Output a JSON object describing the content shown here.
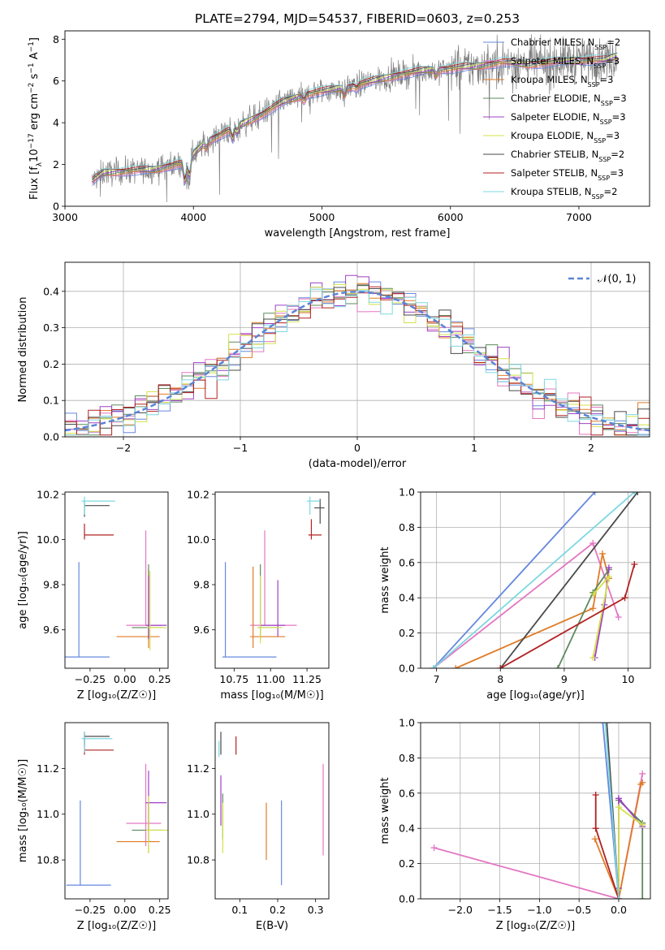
{
  "figure_title": "PLATE=2794, MJD=54537, FIBERID=0603, z=0.253",
  "colors": {
    "data_gray": "#7f7f7f",
    "gauss": "#5b84d6",
    "grid": "#b0b0b0"
  },
  "series_styles": [
    {
      "name": "Chabrier MILES, N_SSP=2",
      "legend": [
        "Chabrier MILES, N",
        "SSP",
        "=2"
      ],
      "color": "#6688dd"
    },
    {
      "name": "Salpeter MILES, N_SSP=3",
      "legend": [
        "Salpeter MILES, N",
        "SSP",
        "=3"
      ],
      "color": "#e377c2"
    },
    {
      "name": "Kroupa MILES, N_SSP=3",
      "legend": [
        "Kroupa MILES, N",
        "SSP",
        "=3"
      ],
      "color": "#e07b26"
    },
    {
      "name": "Chabrier ELODIE, N_SSP=3",
      "legend": [
        "Chabrier ELODIE, N",
        "SSP",
        "=3"
      ],
      "color": "#5e8a5e"
    },
    {
      "name": "Salpeter ELODIE, N_SSP=3",
      "legend": [
        "Salpeter ELODIE, N",
        "SSP",
        "=3"
      ],
      "color": "#9f40c4"
    },
    {
      "name": "Kroupa ELODIE, N_SSP=3",
      "legend": [
        "Kroupa ELODIE, N",
        "SSP",
        "=3"
      ],
      "color": "#d4e04a"
    },
    {
      "name": "Chabrier STELIB, N_SSP=2",
      "legend": [
        "Chabrier STELIB, N",
        "SSP",
        "=2"
      ],
      "color": "#4a4a4a"
    },
    {
      "name": "Salpeter STELIB, N_SSP=3",
      "legend": [
        "Salpeter STELIB, N",
        "SSP",
        "=3"
      ],
      "color": "#b22222"
    },
    {
      "name": "Kroupa STELIB, N_SSP=2",
      "legend": [
        "Kroupa STELIB, N",
        "SSP",
        "=2"
      ],
      "color": "#7dd8e0"
    }
  ],
  "chart_data": [
    {
      "id": "spectrum",
      "type": "line",
      "title": "PLATE=2794, MJD=54537, FIBERID=0603, z=0.253",
      "xlabel": "wavelength [Angstrom, rest frame]",
      "ylabel": [
        "Flux [f",
        "λ",
        "10",
        "−17",
        " erg cm",
        "−2",
        " s",
        "−1",
        " A",
        "−1",
        "]"
      ],
      "xlim": [
        3000,
        7550
      ],
      "ylim": [
        0,
        8.4
      ],
      "xticks": [
        3000,
        4000,
        5000,
        6000,
        7000
      ],
      "yticks": [
        0,
        2,
        4,
        6,
        8
      ],
      "grid": false,
      "legend_position": "top-right",
      "continuum": {
        "x": [
          3210,
          3300,
          3500,
          3700,
          3850,
          3950,
          4000,
          4100,
          4300,
          4500,
          4700,
          4900,
          5100,
          5200,
          5400,
          5600,
          5800,
          6000,
          6200,
          6400,
          6600,
          6800,
          7000,
          7200,
          7300
        ],
        "y": [
          1.2,
          1.6,
          1.7,
          1.75,
          2.0,
          2.1,
          2.5,
          3.1,
          3.7,
          4.3,
          5.0,
          5.4,
          5.6,
          5.7,
          6.0,
          6.3,
          6.5,
          6.6,
          6.7,
          6.9,
          6.8,
          6.9,
          7.0,
          7.0,
          7.2
        ]
      },
      "absorption_features": [
        {
          "x": 3933,
          "depth": 0.9
        },
        {
          "x": 3968,
          "depth": 0.8
        },
        {
          "x": 4102,
          "depth": 0.3
        },
        {
          "x": 4305,
          "depth": 0.5
        },
        {
          "x": 4341,
          "depth": 0.3
        },
        {
          "x": 4861,
          "depth": 0.25
        },
        {
          "x": 5175,
          "depth": 0.35
        },
        {
          "x": 5270,
          "depth": 0.15
        },
        {
          "x": 5890,
          "depth": 0.25
        }
      ]
    },
    {
      "id": "residuals",
      "type": "histogram",
      "xlabel": "(data-model)/error",
      "ylabel": "Normed distribution",
      "xlim": [
        -2.5,
        2.5
      ],
      "ylim": [
        0,
        0.48
      ],
      "xticks": [
        -2,
        -1,
        0,
        1,
        2
      ],
      "yticks": [
        0.0,
        0.1,
        0.2,
        0.3,
        0.4
      ],
      "grid": true,
      "bin_width": 0.1,
      "reference_label": "𝒩(0, 1)",
      "reference_curve": {
        "type": "gaussian",
        "mean": 0,
        "sigma": 1
      },
      "legend_position": "top-right"
    },
    {
      "id": "age_vs_Z",
      "type": "errorbar",
      "xlabel": "Z [log₁₀(Z/Z☉)]",
      "ylabel": "age  [log₁₀(age/yr)]",
      "xlim": [
        -0.43,
        0.31
      ],
      "ylim": [
        9.43,
        10.21
      ],
      "xticks": [
        -0.25,
        0.0,
        0.25
      ],
      "yticks": [
        9.6,
        9.8,
        10.0,
        10.2
      ],
      "points": [
        {
          "series": 0,
          "x": -0.33,
          "y": 9.48,
          "xerr": [
            0.1,
            0.22
          ],
          "yerr": [
            0.0,
            0.42
          ]
        },
        {
          "series": 1,
          "x": 0.15,
          "y": 9.62,
          "xerr": [
            0.14,
            0.11
          ],
          "yerr": [
            0.0,
            0.42
          ]
        },
        {
          "series": 2,
          "x": 0.17,
          "y": 9.57,
          "xerr": [
            0.23,
            0.08
          ],
          "yerr": [
            0.05,
            0.3
          ]
        },
        {
          "series": 3,
          "x": 0.17,
          "y": 9.61,
          "xerr": [
            0.12,
            0.1
          ],
          "yerr": [
            0.05,
            0.28
          ]
        },
        {
          "series": 4,
          "x": 0.17,
          "y": 9.62,
          "xerr": [
            0.02,
            0.13
          ],
          "yerr": [
            0.06,
            0.22
          ]
        },
        {
          "series": 5,
          "x": 0.18,
          "y": 9.61,
          "xerr": [
            0.02,
            0.12
          ],
          "yerr": [
            0.1,
            0.25
          ]
        },
        {
          "series": 6,
          "x": -0.29,
          "y": 10.15,
          "xerr": [
            0.0,
            0.18
          ],
          "yerr": [
            0.05,
            0.02
          ]
        },
        {
          "series": 7,
          "x": -0.29,
          "y": 10.02,
          "xerr": [
            0.0,
            0.21
          ],
          "yerr": [
            0.02,
            0.05
          ]
        },
        {
          "series": 8,
          "x": -0.29,
          "y": 10.17,
          "xerr": [
            0.02,
            0.22
          ],
          "yerr": [
            0.06,
            0.02
          ]
        }
      ]
    },
    {
      "id": "age_vs_mass",
      "type": "errorbar",
      "xlabel": "mass [log₁₀(M/M☉)]",
      "ylabel": "",
      "xlim": [
        10.62,
        11.4
      ],
      "ylim": [
        9.43,
        10.21
      ],
      "xticks": [
        10.75,
        11.0,
        11.25
      ],
      "yticks": [
        9.6,
        9.8,
        10.0,
        10.2
      ],
      "points": [
        {
          "series": 0,
          "x": 10.69,
          "y": 9.48,
          "xerr": [
            0.02,
            0.35
          ],
          "yerr": [
            0.0,
            0.42
          ]
        },
        {
          "series": 1,
          "x": 10.96,
          "y": 9.62,
          "xerr": [
            0.1,
            0.22
          ],
          "yerr": [
            0.0,
            0.42
          ]
        },
        {
          "series": 2,
          "x": 10.88,
          "y": 9.57,
          "xerr": [
            0.02,
            0.22
          ],
          "yerr": [
            0.05,
            0.31
          ]
        },
        {
          "series": 3,
          "x": 10.93,
          "y": 9.61,
          "xerr": [
            0.02,
            0.12
          ],
          "yerr": [
            0.05,
            0.28
          ]
        },
        {
          "series": 4,
          "x": 11.05,
          "y": 9.62,
          "xerr": [
            0.12,
            0.05
          ],
          "yerr": [
            0.05,
            0.2
          ]
        },
        {
          "series": 5,
          "x": 10.93,
          "y": 9.61,
          "xerr": [
            0.02,
            0.15
          ],
          "yerr": [
            0.07,
            0.23
          ]
        },
        {
          "series": 6,
          "x": 11.34,
          "y": 10.14,
          "xerr": [
            0.04,
            0.03
          ],
          "yerr": [
            0.07,
            0.04
          ]
        },
        {
          "series": 7,
          "x": 11.28,
          "y": 10.02,
          "xerr": [
            0.02,
            0.07
          ],
          "yerr": [
            0.02,
            0.07
          ]
        },
        {
          "series": 8,
          "x": 11.27,
          "y": 10.17,
          "xerr": [
            0.02,
            0.07
          ],
          "yerr": [
            0.06,
            0.02
          ]
        }
      ]
    },
    {
      "id": "weight_vs_age",
      "type": "line",
      "xlabel": "age  [log₁₀(age/yr)]",
      "ylabel": "mass weight",
      "xlim": [
        6.75,
        10.35
      ],
      "ylim": [
        0,
        1
      ],
      "xticks": [
        7,
        8,
        9,
        10
      ],
      "yticks": [
        0.0,
        0.2,
        0.4,
        0.6,
        0.8,
        1.0
      ],
      "grid": true,
      "series": [
        {
          "style": 0,
          "x": [
            6.95,
            9.48
          ],
          "y": [
            0.0,
            1.0
          ]
        },
        {
          "style": 1,
          "x": [
            6.95,
            9.45,
            9.85
          ],
          "y": [
            0.0,
            0.71,
            0.29
          ]
        },
        {
          "style": 2,
          "x": [
            7.3,
            9.45,
            9.6,
            9.7
          ],
          "y": [
            0.0,
            0.34,
            0.65,
            0.51
          ]
        },
        {
          "style": 3,
          "x": [
            8.9,
            9.45,
            9.7
          ],
          "y": [
            0.0,
            0.43,
            0.56
          ]
        },
        {
          "style": 4,
          "x": [
            9.48,
            9.63,
            9.7
          ],
          "y": [
            0.06,
            0.36,
            0.57
          ]
        },
        {
          "style": 5,
          "x": [
            9.45,
            9.7,
            9.46
          ],
          "y": [
            0.06,
            0.52,
            0.42
          ]
        },
        {
          "style": 6,
          "x": [
            8.0,
            10.15
          ],
          "y": [
            0.0,
            1.0
          ]
        },
        {
          "style": 7,
          "x": [
            8.0,
            9.95,
            10.1
          ],
          "y": [
            0.0,
            0.4,
            0.59
          ]
        },
        {
          "style": 8,
          "x": [
            6.95,
            10.1
          ],
          "y": [
            0.0,
            1.0
          ]
        }
      ]
    },
    {
      "id": "mass_vs_Z",
      "type": "errorbar",
      "xlabel": "Z [log₁₀(Z/Z☉)]",
      "ylabel": "mass [log₁₀(M/M☉)]",
      "xlim": [
        -0.43,
        0.31
      ],
      "ylim": [
        10.63,
        11.4
      ],
      "xticks": [
        -0.25,
        0.0,
        0.25
      ],
      "yticks": [
        10.8,
        11.0,
        11.2
      ],
      "points": [
        {
          "series": 0,
          "x": -0.32,
          "y": 10.69,
          "xerr": [
            0.1,
            0.22
          ],
          "yerr": [
            0.0,
            0.37
          ]
        },
        {
          "series": 1,
          "x": 0.15,
          "y": 10.96,
          "xerr": [
            0.14,
            0.11
          ],
          "yerr": [
            0.1,
            0.26
          ]
        },
        {
          "series": 2,
          "x": 0.17,
          "y": 10.88,
          "xerr": [
            0.23,
            0.08
          ],
          "yerr": [
            0.05,
            0.17
          ]
        },
        {
          "series": 3,
          "x": 0.17,
          "y": 10.93,
          "xerr": [
            0.12,
            0.1
          ],
          "yerr": [
            0.05,
            0.12
          ]
        },
        {
          "series": 4,
          "x": 0.17,
          "y": 11.05,
          "xerr": [
            0.02,
            0.13
          ],
          "yerr": [
            0.12,
            0.14
          ]
        },
        {
          "series": 5,
          "x": 0.17,
          "y": 10.93,
          "xerr": [
            0.02,
            0.14
          ],
          "yerr": [
            0.1,
            0.15
          ]
        },
        {
          "series": 6,
          "x": -0.29,
          "y": 11.34,
          "xerr": [
            0.0,
            0.18
          ],
          "yerr": [
            0.04,
            0.02
          ]
        },
        {
          "series": 7,
          "x": -0.29,
          "y": 11.28,
          "xerr": [
            0.0,
            0.21
          ],
          "yerr": [
            0.02,
            0.07
          ]
        },
        {
          "series": 8,
          "x": -0.29,
          "y": 11.33,
          "xerr": [
            0.02,
            0.2
          ],
          "yerr": [
            0.06,
            0.03
          ]
        }
      ]
    },
    {
      "id": "mass_vs_EBV",
      "type": "errorbar",
      "xlabel": "E(B-V)",
      "ylabel": "",
      "xlim": [
        0.035,
        0.335
      ],
      "ylim": [
        10.63,
        11.4
      ],
      "xticks": [
        0.1,
        0.2,
        0.3
      ],
      "yticks": [
        10.8,
        11.0,
        11.2
      ],
      "points": [
        {
          "series": 0,
          "x": 0.21,
          "y": 10.69,
          "xerr": [
            0.0,
            0.0
          ],
          "yerr": [
            0.0,
            0.37
          ]
        },
        {
          "series": 1,
          "x": 0.32,
          "y": 10.96,
          "xerr": [
            0.0,
            0.0
          ],
          "yerr": [
            0.14,
            0.26
          ]
        },
        {
          "series": 2,
          "x": 0.17,
          "y": 10.88,
          "xerr": [
            0.0,
            0.0
          ],
          "yerr": [
            0.08,
            0.17
          ]
        },
        {
          "series": 3,
          "x": 0.055,
          "y": 10.93,
          "xerr": [
            0.0,
            0.0
          ],
          "yerr": [
            0.04,
            0.16
          ]
        },
        {
          "series": 4,
          "x": 0.05,
          "y": 11.05,
          "xerr": [
            0.0,
            0.0
          ],
          "yerr": [
            0.1,
            0.12
          ]
        },
        {
          "series": 5,
          "x": 0.055,
          "y": 10.93,
          "xerr": [
            0.0,
            0.0
          ],
          "yerr": [
            0.1,
            0.12
          ]
        },
        {
          "series": 6,
          "x": 0.05,
          "y": 11.34,
          "xerr": [
            0.0,
            0.0
          ],
          "yerr": [
            0.08,
            0.02
          ]
        },
        {
          "series": 7,
          "x": 0.09,
          "y": 11.28,
          "xerr": [
            0.0,
            0.0
          ],
          "yerr": [
            0.02,
            0.06
          ]
        },
        {
          "series": 8,
          "x": 0.045,
          "y": 11.3,
          "xerr": [
            0.0,
            0.0
          ],
          "yerr": [
            0.05,
            0.02
          ]
        }
      ]
    },
    {
      "id": "weight_vs_Z",
      "type": "line",
      "xlabel": "Z [log₁₀(Z/Z☉)]",
      "ylabel": "mass weight",
      "xlim": [
        -2.5,
        0.4
      ],
      "ylim": [
        0,
        1
      ],
      "xticks": [
        -2.0,
        -1.5,
        -1.0,
        -0.5,
        0.0
      ],
      "yticks": [
        0.0,
        0.2,
        0.4,
        0.6,
        0.8,
        1.0
      ],
      "grid": true,
      "series": [
        {
          "style": 0,
          "x": [
            -0.2,
            0.0
          ],
          "y": [
            1.0,
            0.0
          ]
        },
        {
          "style": 1,
          "x": [
            -2.33,
            0.0,
            0.3
          ],
          "y": [
            0.29,
            0.0,
            0.71
          ]
        },
        {
          "style": 2,
          "x": [
            -0.3,
            0.0,
            0.28,
            0.3
          ],
          "y": [
            0.34,
            0.0,
            0.65,
            0.66
          ]
        },
        {
          "style": 3,
          "x": [
            0.0,
            0.3,
            0.3
          ],
          "y": [
            0.56,
            0.43,
            0.0
          ]
        },
        {
          "style": 4,
          "x": [
            0.0,
            0.0,
            0.3
          ],
          "y": [
            0.06,
            0.57,
            0.41
          ]
        },
        {
          "style": 5,
          "x": [
            0.0,
            0.0,
            0.3
          ],
          "y": [
            0.05,
            0.52,
            0.42
          ]
        },
        {
          "style": 6,
          "x": [
            -0.15,
            0.0
          ],
          "y": [
            1.0,
            0.0
          ]
        },
        {
          "style": 7,
          "x": [
            -0.29,
            -0.29,
            0.0
          ],
          "y": [
            0.59,
            0.4,
            0.0
          ]
        },
        {
          "style": 8,
          "x": [
            -0.17,
            0.0
          ],
          "y": [
            1.0,
            0.0
          ]
        }
      ]
    }
  ]
}
